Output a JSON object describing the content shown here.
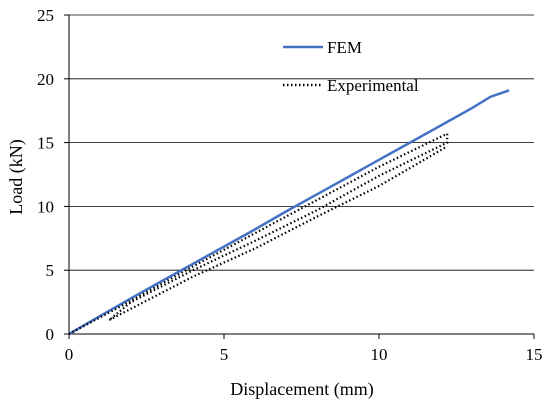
{
  "chart_data": {
    "type": "line",
    "title": "",
    "xlabel": "Displacement (mm)",
    "ylabel": "Load (kN)",
    "xlim": [
      0,
      15
    ],
    "ylim": [
      0,
      25
    ],
    "xticks": [
      "0",
      "5",
      "10",
      "15"
    ],
    "yticks": [
      "0",
      "5",
      "10",
      "15",
      "20",
      "25"
    ],
    "grid": "horizontal",
    "legend": "top-right",
    "series": [
      {
        "name": "FEM",
        "color": "#4472C4",
        "style": "solid",
        "points": [
          [
            0,
            0
          ],
          [
            1,
            1.4
          ],
          [
            2,
            2.8
          ],
          [
            3,
            4.15
          ],
          [
            4,
            5.5
          ],
          [
            5,
            6.85
          ],
          [
            6,
            8.2
          ],
          [
            7,
            9.6
          ],
          [
            8,
            10.95
          ],
          [
            9,
            12.3
          ],
          [
            10,
            13.65
          ],
          [
            11,
            15.0
          ],
          [
            12,
            16.35
          ],
          [
            13,
            17.7
          ],
          [
            13.6,
            18.6
          ],
          [
            14.2,
            19.1
          ]
        ]
      },
      {
        "name": "Experimental",
        "color": "#000000",
        "style": "dotted",
        "loops": [
          [
            [
              0,
              0
            ],
            [
              1,
              1.3
            ],
            [
              2,
              2.6
            ],
            [
              4,
              5.3
            ],
            [
              6,
              7.9
            ],
            [
              8,
              10.5
            ],
            [
              10,
              13.1
            ],
            [
              12.2,
              15.7
            ]
          ],
          [
            [
              12.2,
              15.7
            ],
            [
              12.2,
              15.0
            ],
            [
              10,
              12.4
            ],
            [
              8,
              9.7
            ],
            [
              6,
              7.3
            ],
            [
              4,
              5.0
            ],
            [
              2,
              2.5
            ],
            [
              1.3,
              1.1
            ]
          ],
          [
            [
              1.3,
              1.1
            ],
            [
              4,
              4.5
            ],
            [
              6,
              6.7
            ],
            [
              8,
              9.2
            ],
            [
              10,
              11.6
            ],
            [
              12.2,
              14.7
            ]
          ]
        ]
      }
    ]
  }
}
